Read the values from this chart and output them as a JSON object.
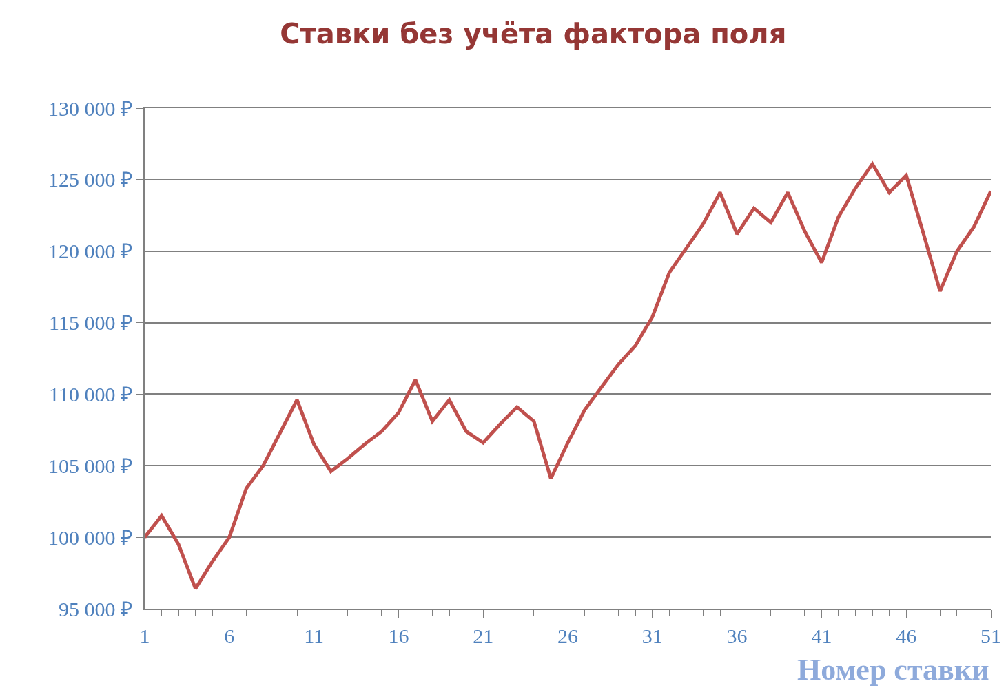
{
  "chart_data": {
    "type": "line",
    "title": "Ставки без учёта фактора поля",
    "xlabel": "Номер ставки",
    "x": [
      1,
      2,
      3,
      4,
      5,
      6,
      7,
      8,
      9,
      10,
      11,
      12,
      13,
      14,
      15,
      16,
      17,
      18,
      19,
      20,
      21,
      22,
      23,
      24,
      25,
      26,
      27,
      28,
      29,
      30,
      31,
      32,
      33,
      34,
      35,
      36,
      37,
      38,
      39,
      40,
      41,
      42,
      43,
      44,
      45,
      46,
      47,
      48,
      49,
      50,
      51
    ],
    "series": [
      {
        "color": "#c0504d",
        "values": [
          100000,
          101500,
          99500,
          96400,
          98300,
          100000,
          103400,
          105000,
          107300,
          109600,
          106500,
          104600,
          105500,
          106500,
          107400,
          108700,
          111000,
          108100,
          109600,
          107400,
          106600,
          107900,
          109100,
          108100,
          104100,
          106600,
          108900,
          110500,
          112100,
          113400,
          115400,
          118500,
          120200,
          121900,
          124100,
          121200,
          123000,
          122000,
          124100,
          121400,
          119200,
          122400,
          124400,
          126100,
          124100,
          125300,
          121300,
          117200,
          120000,
          121700,
          124200
        ]
      }
    ],
    "xlim": [
      1,
      51
    ],
    "xticks": [
      1,
      6,
      11,
      16,
      21,
      26,
      31,
      36,
      41,
      46,
      51
    ],
    "ylim": [
      95000,
      130000
    ],
    "yticks": [
      {
        "value": 95000,
        "label": "95 000 ₽"
      },
      {
        "value": 100000,
        "label": "100 000 ₽"
      },
      {
        "value": 105000,
        "label": "105 000 ₽"
      },
      {
        "value": 110000,
        "label": "110 000 ₽"
      },
      {
        "value": 115000,
        "label": "115 000 ₽"
      },
      {
        "value": 120000,
        "label": "120 000 ₽"
      },
      {
        "value": 125000,
        "label": "125 000 ₽"
      },
      {
        "value": 130000,
        "label": "130 000 ₽"
      }
    ],
    "grid": "y",
    "marker": "none",
    "line_style": "solid"
  }
}
